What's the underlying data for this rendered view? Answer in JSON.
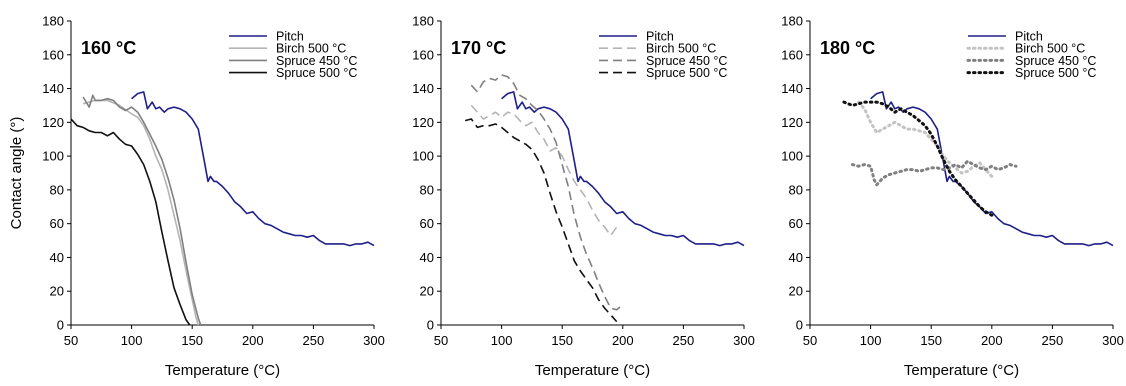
{
  "colors": {
    "pitch": "#1f1f8a",
    "birch": "#b4b4b4",
    "spruce450": "#808080",
    "spruce500": "#111111",
    "axis": "#000000"
  },
  "chart_data": [
    {
      "type": "line",
      "title": "160 °C",
      "xlabel": "Temperature (°C)",
      "ylabel": "Contact angle (°)",
      "xlim": [
        50,
        300
      ],
      "ylim": [
        0,
        180
      ],
      "xticks": [
        50,
        100,
        150,
        200,
        250,
        300
      ],
      "yticks": [
        0,
        20,
        40,
        60,
        80,
        100,
        120,
        140,
        160,
        180
      ],
      "grid": false,
      "legend_position": "top-right",
      "series": [
        {
          "name": "Pitch",
          "color": "#1f1f8a",
          "dash": "solid",
          "x": [
            100,
            105,
            110,
            113,
            117,
            120,
            123,
            127,
            130,
            135,
            140,
            145,
            150,
            155,
            160,
            163,
            165,
            168,
            170,
            175,
            180,
            185,
            190,
            195,
            200,
            205,
            210,
            215,
            220,
            225,
            230,
            235,
            240,
            245,
            250,
            255,
            260,
            265,
            270,
            275,
            280,
            285,
            290,
            295,
            300
          ],
          "y": [
            134,
            137,
            138,
            128,
            132,
            128,
            129,
            126,
            128,
            129,
            128,
            126,
            122,
            116,
            97,
            85,
            88,
            85,
            85,
            82,
            78,
            73,
            70,
            66,
            67,
            63,
            60,
            59,
            57,
            55,
            54,
            53,
            53,
            52,
            53,
            50,
            48,
            48,
            48,
            48,
            47,
            48,
            48,
            49,
            47
          ]
        },
        {
          "name": "Birch 500 °C",
          "color": "#b4b4b4",
          "dash": "solid",
          "x": [
            60,
            70,
            80,
            90,
            100,
            105,
            110,
            115,
            120,
            125,
            130,
            135,
            140,
            145,
            150,
            153,
            155
          ],
          "y": [
            131,
            133,
            133,
            130,
            125,
            123,
            118,
            110,
            100,
            92,
            80,
            65,
            50,
            32,
            15,
            5,
            0
          ]
        },
        {
          "name": "Spruce 450 °C",
          "color": "#808080",
          "dash": "solid",
          "x": [
            60,
            65,
            68,
            70,
            75,
            80,
            85,
            90,
            95,
            100,
            105,
            110,
            115,
            120,
            125,
            130,
            135,
            140,
            145,
            150,
            155,
            157
          ],
          "y": [
            135,
            129,
            136,
            133,
            133,
            134,
            133,
            129,
            127,
            129,
            126,
            120,
            113,
            106,
            98,
            87,
            74,
            57,
            37,
            18,
            4,
            0
          ]
        },
        {
          "name": "Spruce 500 °C",
          "color": "#111111",
          "dash": "solid",
          "x": [
            50,
            55,
            60,
            65,
            70,
            75,
            80,
            85,
            90,
            95,
            100,
            105,
            110,
            115,
            120,
            125,
            130,
            135,
            140,
            145,
            148
          ],
          "y": [
            122,
            118,
            117,
            115,
            114,
            114,
            112,
            114,
            110,
            107,
            106,
            101,
            95,
            85,
            73,
            55,
            38,
            22,
            12,
            3,
            0
          ]
        }
      ]
    },
    {
      "type": "line",
      "title": "170 °C",
      "xlabel": "Temperature (°C)",
      "ylabel": "",
      "xlim": [
        50,
        300
      ],
      "ylim": [
        0,
        180
      ],
      "xticks": [
        50,
        100,
        150,
        200,
        250,
        300
      ],
      "yticks": [
        0,
        20,
        40,
        60,
        80,
        100,
        120,
        140,
        160,
        180
      ],
      "grid": false,
      "legend_position": "top-right",
      "series": [
        {
          "name": "Pitch",
          "color": "#1f1f8a",
          "dash": "solid",
          "x": [
            100,
            105,
            110,
            113,
            117,
            120,
            123,
            127,
            130,
            135,
            140,
            145,
            150,
            155,
            160,
            163,
            165,
            168,
            170,
            175,
            180,
            185,
            190,
            195,
            200,
            205,
            210,
            215,
            220,
            225,
            230,
            235,
            240,
            245,
            250,
            255,
            260,
            265,
            270,
            275,
            280,
            285,
            290,
            295,
            300
          ],
          "y": [
            134,
            137,
            138,
            128,
            132,
            128,
            129,
            126,
            128,
            129,
            128,
            126,
            122,
            116,
            97,
            85,
            88,
            85,
            85,
            82,
            78,
            73,
            70,
            66,
            67,
            63,
            60,
            59,
            57,
            55,
            54,
            53,
            53,
            52,
            53,
            50,
            48,
            48,
            48,
            48,
            47,
            48,
            48,
            49,
            47
          ]
        },
        {
          "name": "Birch 500 °C",
          "color": "#b4b4b4",
          "dash": "long",
          "x": [
            75,
            80,
            85,
            90,
            95,
            100,
            105,
            110,
            115,
            120,
            125,
            130,
            135,
            140,
            145,
            150,
            155,
            160,
            165,
            170,
            175,
            180,
            185,
            190,
            195
          ],
          "y": [
            130,
            126,
            122,
            124,
            126,
            123,
            126,
            125,
            121,
            118,
            120,
            114,
            110,
            103,
            105,
            100,
            92,
            85,
            80,
            75,
            68,
            62,
            58,
            53,
            58
          ]
        },
        {
          "name": "Spruce 450 °C",
          "color": "#808080",
          "dash": "long",
          "x": [
            75,
            80,
            85,
            90,
            95,
            100,
            105,
            110,
            115,
            120,
            125,
            130,
            135,
            140,
            145,
            150,
            155,
            160,
            165,
            170,
            175,
            180,
            185,
            190,
            195,
            200
          ],
          "y": [
            142,
            138,
            144,
            146,
            145,
            148,
            147,
            143,
            136,
            134,
            130,
            127,
            122,
            116,
            108,
            95,
            82,
            65,
            52,
            42,
            34,
            25,
            17,
            10,
            9,
            12
          ]
        },
        {
          "name": "Spruce 500 °C",
          "color": "#111111",
          "dash": "long",
          "x": [
            70,
            75,
            80,
            85,
            90,
            95,
            100,
            105,
            110,
            115,
            120,
            125,
            130,
            135,
            140,
            145,
            150,
            155,
            160,
            165,
            170,
            175,
            180,
            185,
            190,
            195
          ],
          "y": [
            121,
            122,
            117,
            118,
            118,
            119,
            117,
            114,
            111,
            109,
            107,
            104,
            98,
            90,
            78,
            67,
            58,
            48,
            38,
            32,
            27,
            22,
            15,
            10,
            6,
            2
          ]
        }
      ]
    },
    {
      "type": "line",
      "title": "180 °C",
      "xlabel": "Temperature (°C)",
      "ylabel": "",
      "xlim": [
        50,
        300
      ],
      "ylim": [
        0,
        180
      ],
      "xticks": [
        50,
        100,
        150,
        200,
        250,
        300
      ],
      "yticks": [
        0,
        20,
        40,
        60,
        80,
        100,
        120,
        140,
        160,
        180
      ],
      "grid": false,
      "legend_position": "top-right",
      "series": [
        {
          "name": "Pitch",
          "color": "#1f1f8a",
          "dash": "solid",
          "x": [
            100,
            105,
            110,
            113,
            117,
            120,
            123,
            127,
            130,
            135,
            140,
            145,
            150,
            155,
            160,
            163,
            165,
            168,
            170,
            175,
            180,
            185,
            190,
            195,
            200,
            205,
            210,
            215,
            220,
            225,
            230,
            235,
            240,
            245,
            250,
            255,
            260,
            265,
            270,
            275,
            280,
            285,
            290,
            295,
            300
          ],
          "y": [
            134,
            137,
            138,
            128,
            132,
            128,
            129,
            126,
            128,
            129,
            128,
            126,
            122,
            116,
            97,
            85,
            88,
            85,
            85,
            82,
            78,
            73,
            70,
            66,
            67,
            63,
            60,
            59,
            57,
            55,
            54,
            53,
            53,
            52,
            53,
            50,
            48,
            48,
            48,
            48,
            47,
            48,
            48,
            49,
            47
          ]
        },
        {
          "name": "Birch 500 °C",
          "color": "#c4c4c4",
          "dash": "dot",
          "x": [
            90,
            95,
            100,
            105,
            110,
            115,
            120,
            125,
            130,
            135,
            140,
            145,
            150,
            155,
            160,
            165,
            170,
            175,
            180,
            185,
            190,
            195,
            200
          ],
          "y": [
            132,
            128,
            120,
            114,
            116,
            118,
            120,
            118,
            116,
            116,
            115,
            114,
            110,
            106,
            100,
            96,
            93,
            90,
            91,
            94,
            96,
            92,
            88
          ]
        },
        {
          "name": "Spruce 450 °C",
          "color": "#808080",
          "dash": "dot",
          "x": [
            85,
            90,
            95,
            100,
            103,
            105,
            110,
            115,
            120,
            125,
            130,
            135,
            140,
            145,
            150,
            155,
            160,
            165,
            170,
            175,
            180,
            185,
            190,
            195,
            200,
            205,
            210,
            215,
            220
          ],
          "y": [
            95,
            94,
            95,
            94,
            86,
            83,
            87,
            89,
            90,
            91,
            92,
            92,
            91,
            92,
            93,
            93,
            92,
            93,
            95,
            93,
            97,
            95,
            93,
            92,
            94,
            92,
            93,
            95,
            94
          ]
        },
        {
          "name": "Spruce 500 °C",
          "color": "#111111",
          "dash": "dot",
          "x": [
            78,
            85,
            90,
            95,
            100,
            105,
            110,
            115,
            120,
            125,
            130,
            135,
            140,
            145,
            150,
            155,
            160,
            165,
            170,
            175,
            180,
            185,
            190,
            195,
            200
          ],
          "y": [
            132,
            130,
            131,
            132,
            132,
            132,
            131,
            129,
            126,
            128,
            126,
            124,
            121,
            118,
            113,
            106,
            98,
            91,
            86,
            82,
            78,
            74,
            70,
            67,
            65
          ]
        }
      ]
    }
  ]
}
